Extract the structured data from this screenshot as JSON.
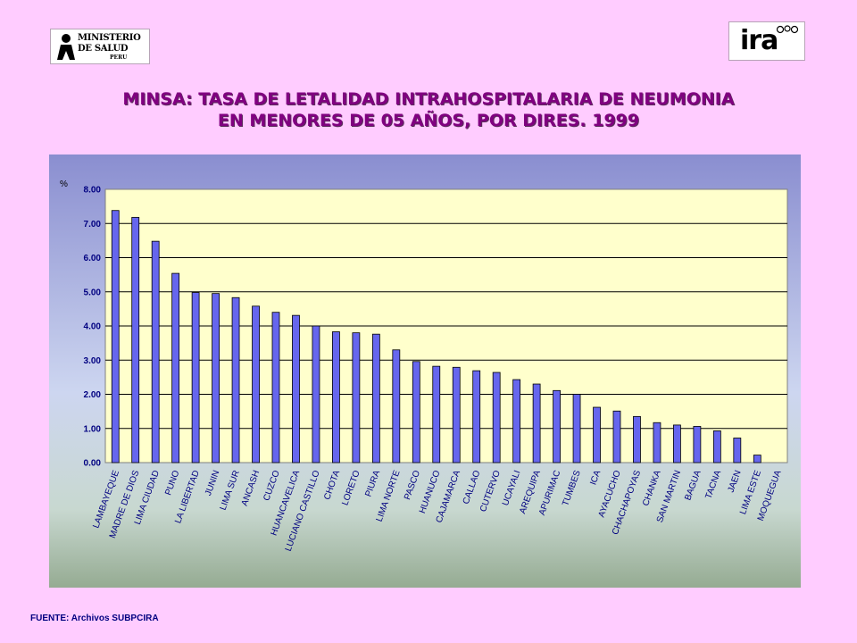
{
  "logos": {
    "minsa": {
      "line1": "MINISTERIO",
      "line2": "DE SALUD",
      "line3": "PERU"
    },
    "ira": {
      "word": "ira"
    }
  },
  "title": {
    "line1": "MINSA: TASA DE LETALIDAD INTRAHOSPITALARIA DE NEUMONIA",
    "line2": "EN MENORES DE 05 AÑOS, POR DIRES.  1999"
  },
  "source": "FUENTE: Archivos SUBPCIRA",
  "colors": {
    "background": "#ffccff",
    "title": "#800080",
    "bar": "#6666ee",
    "plot_area": "#ffffcc",
    "axis_labels": "#000080"
  },
  "chart_data": {
    "type": "bar",
    "title": "MINSA: TASA DE LETALIDAD INTRAHOSPITALARIA DE NEUMONIA EN MENORES DE 05 AÑOS, POR DIRES.  1999",
    "ylabel": "%",
    "xlabel": "",
    "ylim": [
      0,
      8
    ],
    "yticks": [
      0,
      1,
      2,
      3,
      4,
      5,
      6,
      7,
      8
    ],
    "ytick_labels": [
      "0.00",
      "1.00",
      "2.00",
      "3.00",
      "4.00",
      "5.00",
      "6.00",
      "7.00",
      "8.00"
    ],
    "grid": true,
    "categories": [
      "LAMBAYEQUE",
      "MADRE DE DIOS",
      "LIMA CIUDAD",
      "PUNO",
      "LA LIBERTAD",
      "JUNIN",
      "LIMA SUR",
      "ANCASH",
      "CUZCO",
      "HUANCAVELICA",
      "LUCIANO CASTILLO",
      "CHOTA",
      "LORETO",
      "PIURA",
      "LIMA NORTE",
      "PASCO",
      "HUANUCO",
      "CAJAMARCA",
      "CALLAO",
      "CUTERVO",
      "UCAYALI",
      "AREQUIPA",
      "APURIMAC",
      "TUMBES",
      "ICA",
      "AYACUCHO",
      "CHACHAPOYAS",
      "CHANKA",
      "SAN MARTIN",
      "BAGUA",
      "TACNA",
      "JAEN",
      "LIMA ESTE",
      "MOQUEGUA"
    ],
    "values": [
      7.38,
      7.18,
      6.48,
      5.54,
      4.98,
      4.95,
      4.83,
      4.58,
      4.4,
      4.31,
      4.0,
      3.83,
      3.8,
      3.76,
      3.3,
      2.96,
      2.82,
      2.79,
      2.69,
      2.64,
      2.43,
      2.3,
      2.11,
      2.0,
      1.62,
      1.51,
      1.35,
      1.17,
      1.1,
      1.06,
      0.93,
      0.72,
      0.22,
      0.0
    ]
  }
}
